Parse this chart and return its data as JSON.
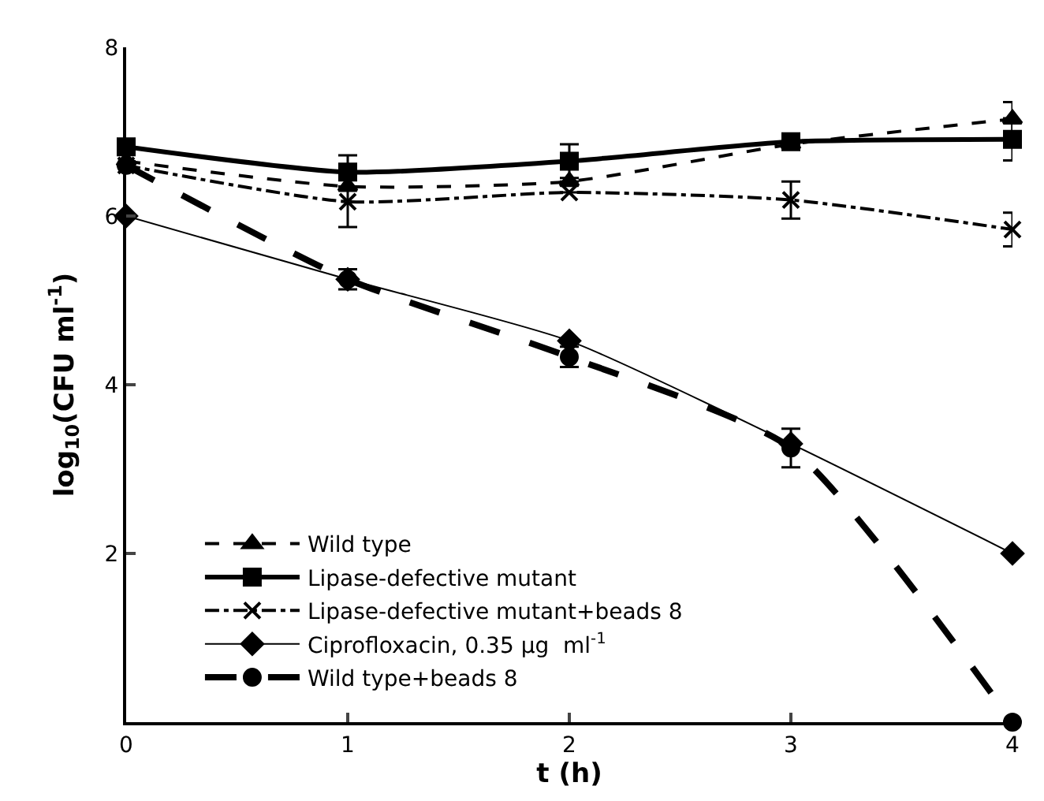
{
  "chart_data": {
    "type": "line",
    "xlabel": "t (h)",
    "ylabel": "log$_{10}$(CFU ml$^{-1}$)",
    "x": [
      0,
      1,
      2,
      3,
      4
    ],
    "xlim": [
      0,
      4
    ],
    "xticks": [
      0,
      1,
      2,
      3,
      4
    ],
    "ylim": [
      0,
      8
    ],
    "yticks": [
      {
        "value": 0,
        "label": null
      },
      2,
      4,
      6,
      8
    ],
    "legend": "bottom left",
    "series": [
      {
        "name": "Wild type",
        "color": "#000000",
        "marker": "triangle",
        "line_style": "dashed",
        "values": [
          6.65,
          6.35,
          6.41,
          6.85,
          7.15
        ],
        "errors": [
          null,
          null,
          null,
          null,
          0.2
        ]
      },
      {
        "name": "Lipase-defective mutant",
        "color": "#000000",
        "marker": "square",
        "line_style": "solid",
        "values": [
          6.82,
          6.52,
          6.65,
          6.88,
          6.91
        ],
        "errors": [
          null,
          0.2,
          0.2,
          null,
          0.25
        ]
      },
      {
        "name": "Lipase-defective mutant+beads 8",
        "color": "#000000",
        "marker": "cross",
        "line_style": "dashdot",
        "values": [
          6.6,
          6.17,
          6.28,
          6.19,
          5.84
        ],
        "errors": [
          null,
          0.3,
          null,
          0.22,
          0.2
        ]
      },
      {
        "name": "Ciprofloxacin, 0.35 µg  ml$^{-1}$",
        "color": "#000000",
        "marker": "diamond",
        "line_style": "solid",
        "values": [
          6.0,
          5.25,
          4.52,
          3.3,
          2.0
        ],
        "errors": [
          null,
          null,
          null,
          null,
          null
        ]
      },
      {
        "name": "Wild type+beads 8",
        "color": "#000000",
        "marker": "circle",
        "line_style": "longdash",
        "values": [
          6.6,
          5.25,
          4.33,
          3.25,
          0
        ],
        "errors": [
          null,
          0.12,
          0.12,
          0.23,
          null
        ]
      }
    ]
  }
}
